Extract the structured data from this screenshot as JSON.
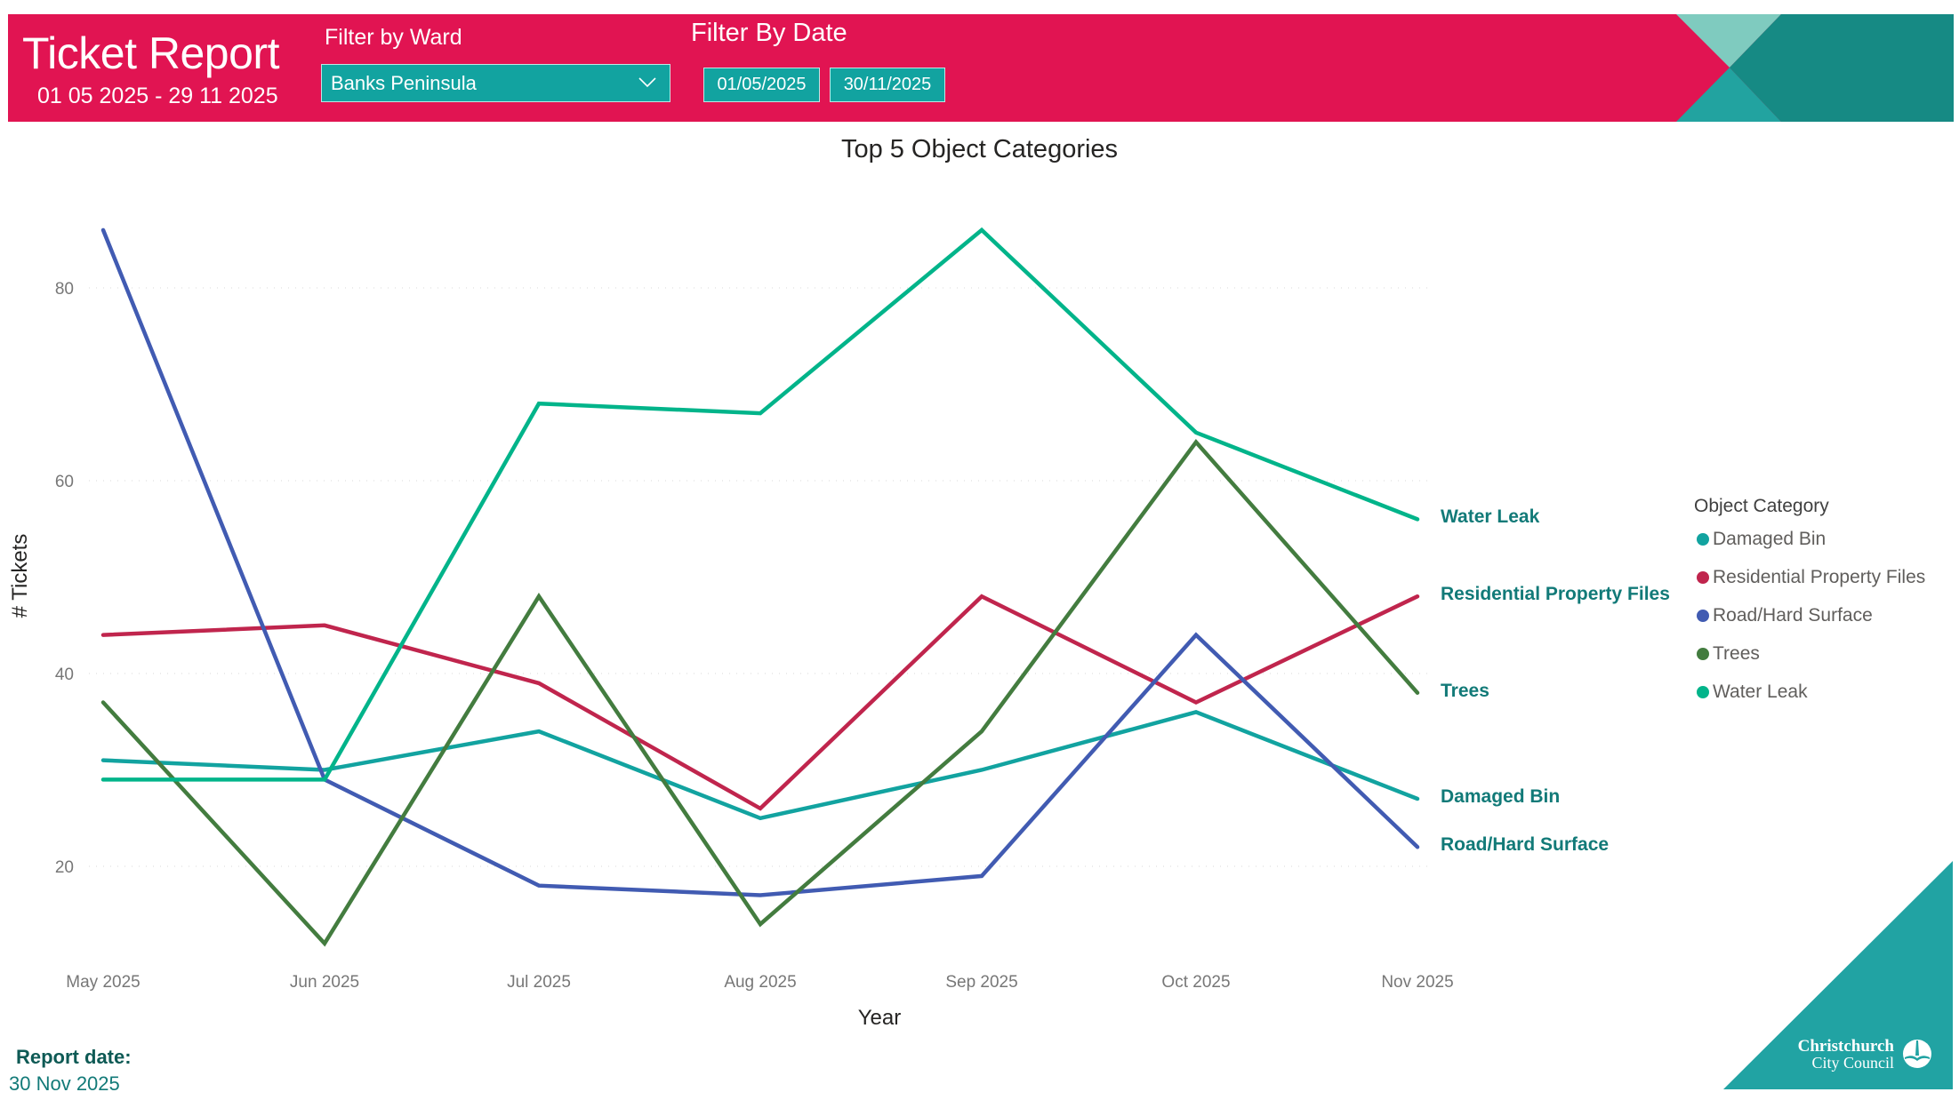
{
  "header": {
    "title": "Ticket Report",
    "date_range": "01 05 2025 - 29 11 2025",
    "ward_filter_label": "Filter by Ward",
    "ward_selected": "Banks Peninsula",
    "date_filter_label": "Filter By Date",
    "date_start": "01/05/2025",
    "date_end": "30/11/2025"
  },
  "colors": {
    "header_bg": "#E11452",
    "control_bg": "#12A3A0",
    "label_text": "#127A78",
    "brand_teal": "#21A3A3"
  },
  "footer": {
    "report_date_label": "Report date:",
    "report_date_value": "30 Nov 2025",
    "logo_line1": "Christchurch",
    "logo_line2": "City Council"
  },
  "chart_data": {
    "type": "line",
    "title": "Top 5 Object Categories",
    "xlabel": "Year",
    "ylabel": "# Tickets",
    "x": [
      "May 2025",
      "Jun 2025",
      "Jul 2025",
      "Aug 2025",
      "Sep 2025",
      "Oct 2025",
      "Nov 2025"
    ],
    "x_days_from_start": [
      0,
      31,
      61,
      92,
      123,
      153,
      184
    ],
    "yticks": [
      20,
      40,
      60,
      80
    ],
    "ylim": [
      10,
      90
    ],
    "grid": true,
    "legend_title": "Object Category",
    "legend_position": "right",
    "series": [
      {
        "name": "Damaged Bin",
        "color": "#12A3A0",
        "values": [
          31,
          30,
          34,
          25,
          30,
          36,
          27
        ]
      },
      {
        "name": "Residential Property Files",
        "color": "#C0254D",
        "values": [
          44,
          45,
          39,
          26,
          48,
          37,
          48
        ]
      },
      {
        "name": "Road/Hard Surface",
        "color": "#415BB2",
        "values": [
          86,
          29,
          18,
          17,
          19,
          44,
          22
        ]
      },
      {
        "name": "Trees",
        "color": "#437C3F",
        "values": [
          37,
          12,
          48,
          14,
          34,
          64,
          38
        ]
      },
      {
        "name": "Water Leak",
        "color": "#01B48A",
        "values": [
          29,
          29,
          68,
          67,
          86,
          65,
          56
        ]
      }
    ],
    "end_labels": [
      {
        "series": "Water Leak",
        "text": "Water Leak"
      },
      {
        "series": "Residential Property Files",
        "text": "Residential Property Files"
      },
      {
        "series": "Trees",
        "text": "Trees"
      },
      {
        "series": "Damaged Bin",
        "text": "Damaged Bin"
      },
      {
        "series": "Road/Hard Surface",
        "text": "Road/Hard Surface"
      }
    ]
  }
}
